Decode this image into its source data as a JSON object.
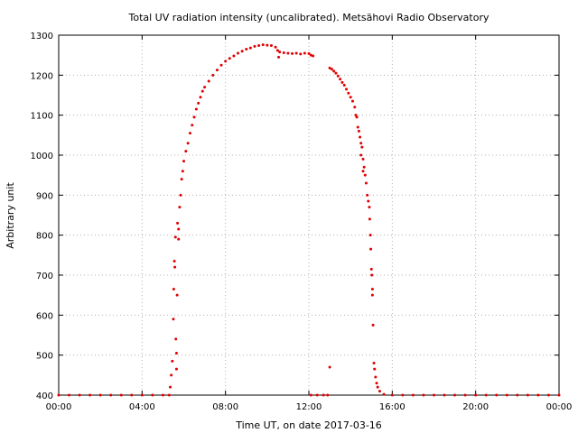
{
  "colors": {
    "series": "#e00000",
    "grid": "#b0b0b0",
    "axis": "#000000",
    "background": "#ffffff"
  },
  "chart_data": {
    "type": "scatter",
    "title": "Total UV radiation intensity (uncalibrated). Metsähovi Radio Observatory",
    "xlabel": "Time UT, on date 2017-03-16",
    "ylabel": "Arbitrary unit",
    "xlim": [
      0,
      24
    ],
    "ylim": [
      400,
      1300
    ],
    "grid": true,
    "xticks": [
      {
        "value": 0,
        "label": "00:00"
      },
      {
        "value": 4,
        "label": "04:00"
      },
      {
        "value": 8,
        "label": "08:00"
      },
      {
        "value": 12,
        "label": "12:00"
      },
      {
        "value": 16,
        "label": "16:00"
      },
      {
        "value": 20,
        "label": "20:00"
      },
      {
        "value": 24,
        "label": "00:00"
      }
    ],
    "yticks": [
      {
        "value": 400,
        "label": "400"
      },
      {
        "value": 500,
        "label": "500"
      },
      {
        "value": 600,
        "label": "600"
      },
      {
        "value": 700,
        "label": "700"
      },
      {
        "value": 800,
        "label": "800"
      },
      {
        "value": 900,
        "label": "900"
      },
      {
        "value": 1000,
        "label": "1000"
      },
      {
        "value": 1100,
        "label": "1100"
      },
      {
        "value": 1200,
        "label": "1200"
      },
      {
        "value": 1300,
        "label": "1300"
      }
    ],
    "series": [
      {
        "points": [
          [
            0.0,
            400
          ],
          [
            0.5,
            400
          ],
          [
            1.0,
            400
          ],
          [
            1.5,
            400
          ],
          [
            2.0,
            400
          ],
          [
            2.5,
            400
          ],
          [
            3.0,
            400
          ],
          [
            3.5,
            400
          ],
          [
            4.0,
            400
          ],
          [
            4.5,
            400
          ],
          [
            5.0,
            400
          ],
          [
            5.3,
            400
          ],
          [
            5.35,
            420
          ],
          [
            5.4,
            450
          ],
          [
            5.45,
            485
          ],
          [
            5.5,
            590
          ],
          [
            5.52,
            665
          ],
          [
            5.55,
            735
          ],
          [
            5.57,
            720
          ],
          [
            5.6,
            795
          ],
          [
            5.62,
            540
          ],
          [
            5.65,
            465
          ],
          [
            5.65,
            505
          ],
          [
            5.68,
            650
          ],
          [
            5.7,
            830
          ],
          [
            5.75,
            815
          ],
          [
            5.75,
            790
          ],
          [
            5.8,
            870
          ],
          [
            5.85,
            900
          ],
          [
            5.9,
            940
          ],
          [
            5.95,
            960
          ],
          [
            6.0,
            985
          ],
          [
            6.1,
            1010
          ],
          [
            6.2,
            1030
          ],
          [
            6.3,
            1055
          ],
          [
            6.4,
            1075
          ],
          [
            6.5,
            1095
          ],
          [
            6.6,
            1115
          ],
          [
            6.7,
            1130
          ],
          [
            6.8,
            1145
          ],
          [
            6.9,
            1160
          ],
          [
            7.0,
            1170
          ],
          [
            7.2,
            1185
          ],
          [
            7.4,
            1200
          ],
          [
            7.6,
            1213
          ],
          [
            7.8,
            1225
          ],
          [
            8.0,
            1235
          ],
          [
            8.2,
            1242
          ],
          [
            8.4,
            1248
          ],
          [
            8.6,
            1255
          ],
          [
            8.8,
            1260
          ],
          [
            9.0,
            1265
          ],
          [
            9.2,
            1268
          ],
          [
            9.4,
            1272
          ],
          [
            9.6,
            1274
          ],
          [
            9.8,
            1276
          ],
          [
            10.0,
            1275
          ],
          [
            10.2,
            1274
          ],
          [
            10.4,
            1270
          ],
          [
            10.5,
            1262
          ],
          [
            10.55,
            1245
          ],
          [
            10.6,
            1258
          ],
          [
            10.8,
            1256
          ],
          [
            11.0,
            1255
          ],
          [
            11.2,
            1254
          ],
          [
            11.4,
            1255
          ],
          [
            11.6,
            1253
          ],
          [
            11.8,
            1255
          ],
          [
            12.0,
            1254
          ],
          [
            12.1,
            1250
          ],
          [
            12.2,
            1248
          ],
          [
            12.1,
            400
          ],
          [
            12.4,
            400
          ],
          [
            12.7,
            400
          ],
          [
            12.9,
            400
          ],
          [
            13.0,
            470
          ],
          [
            13.0,
            1218
          ],
          [
            13.1,
            1215
          ],
          [
            13.2,
            1210
          ],
          [
            13.3,
            1205
          ],
          [
            13.4,
            1198
          ],
          [
            13.5,
            1190
          ],
          [
            13.6,
            1182
          ],
          [
            13.7,
            1175
          ],
          [
            13.8,
            1165
          ],
          [
            13.9,
            1155
          ],
          [
            14.0,
            1145
          ],
          [
            14.1,
            1135
          ],
          [
            14.2,
            1120
          ],
          [
            14.25,
            1100
          ],
          [
            14.3,
            1095
          ],
          [
            14.35,
            1070
          ],
          [
            14.4,
            1060
          ],
          [
            14.45,
            1045
          ],
          [
            14.5,
            1030
          ],
          [
            14.5,
            1000
          ],
          [
            14.55,
            1020
          ],
          [
            14.6,
            990
          ],
          [
            14.6,
            960
          ],
          [
            14.65,
            970
          ],
          [
            14.7,
            950
          ],
          [
            14.75,
            930
          ],
          [
            14.8,
            900
          ],
          [
            14.85,
            885
          ],
          [
            14.9,
            870
          ],
          [
            14.92,
            840
          ],
          [
            14.95,
            800
          ],
          [
            14.97,
            765
          ],
          [
            15.0,
            715
          ],
          [
            15.02,
            700
          ],
          [
            15.05,
            665
          ],
          [
            15.05,
            650
          ],
          [
            15.08,
            575
          ],
          [
            15.12,
            480
          ],
          [
            15.15,
            465
          ],
          [
            15.2,
            445
          ],
          [
            15.25,
            430
          ],
          [
            15.3,
            420
          ],
          [
            15.4,
            410
          ],
          [
            15.6,
            402
          ],
          [
            16.0,
            400
          ],
          [
            16.5,
            400
          ],
          [
            17.0,
            400
          ],
          [
            17.5,
            400
          ],
          [
            18.0,
            400
          ],
          [
            18.5,
            400
          ],
          [
            19.0,
            400
          ],
          [
            19.5,
            400
          ],
          [
            20.0,
            400
          ],
          [
            20.5,
            400
          ],
          [
            21.0,
            400
          ],
          [
            21.5,
            400
          ],
          [
            22.0,
            400
          ],
          [
            22.5,
            400
          ],
          [
            23.0,
            400
          ],
          [
            23.5,
            400
          ],
          [
            24.0,
            400
          ]
        ]
      }
    ]
  }
}
